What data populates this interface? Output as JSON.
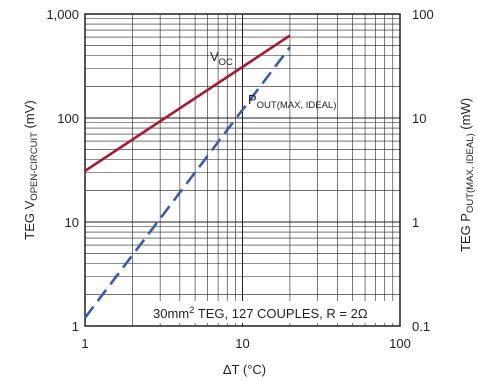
{
  "chart_data": {
    "type": "line",
    "x_scale": "log",
    "y_scale": "log",
    "y2_scale": "log",
    "xlim": [
      1,
      100
    ],
    "ylim": [
      1,
      1000
    ],
    "y2lim": [
      0.1,
      100
    ],
    "grid": true,
    "xlabel": "ΔT (°C)",
    "ylabel": {
      "main": "TEG V",
      "sub": "OPEN-CIRCUIT",
      "tail": " (mV)"
    },
    "y2label": {
      "main": "TEG P",
      "sub": "OUT(MAX, IDEAL)",
      "tail": " (mW)"
    },
    "x_ticks": [
      "1",
      "10",
      "100"
    ],
    "y_ticks": [
      "1",
      "10",
      "100",
      "1,000"
    ],
    "y2_ticks": [
      "0.1",
      "1",
      "10",
      "100"
    ],
    "series": [
      {
        "name": "VOC",
        "label": {
          "main": "V",
          "sub": "OC"
        },
        "axis": "left",
        "style": "solid",
        "color": "#a6192e",
        "x": [
          1,
          20
        ],
        "y": [
          31,
          620
        ]
      },
      {
        "name": "POUT(MAX, IDEAL)",
        "label": {
          "main": "P",
          "sub": "OUT(MAX, IDEAL)"
        },
        "axis": "right",
        "style": "dashed",
        "color": "#3a5ca8",
        "x": [
          1,
          20
        ],
        "y": [
          0.12,
          48
        ]
      }
    ],
    "annotation": {
      "prefix": "30mm",
      "sup": "2",
      "suffix": " TEG, 127 COUPLES, R = 2Ω"
    }
  }
}
